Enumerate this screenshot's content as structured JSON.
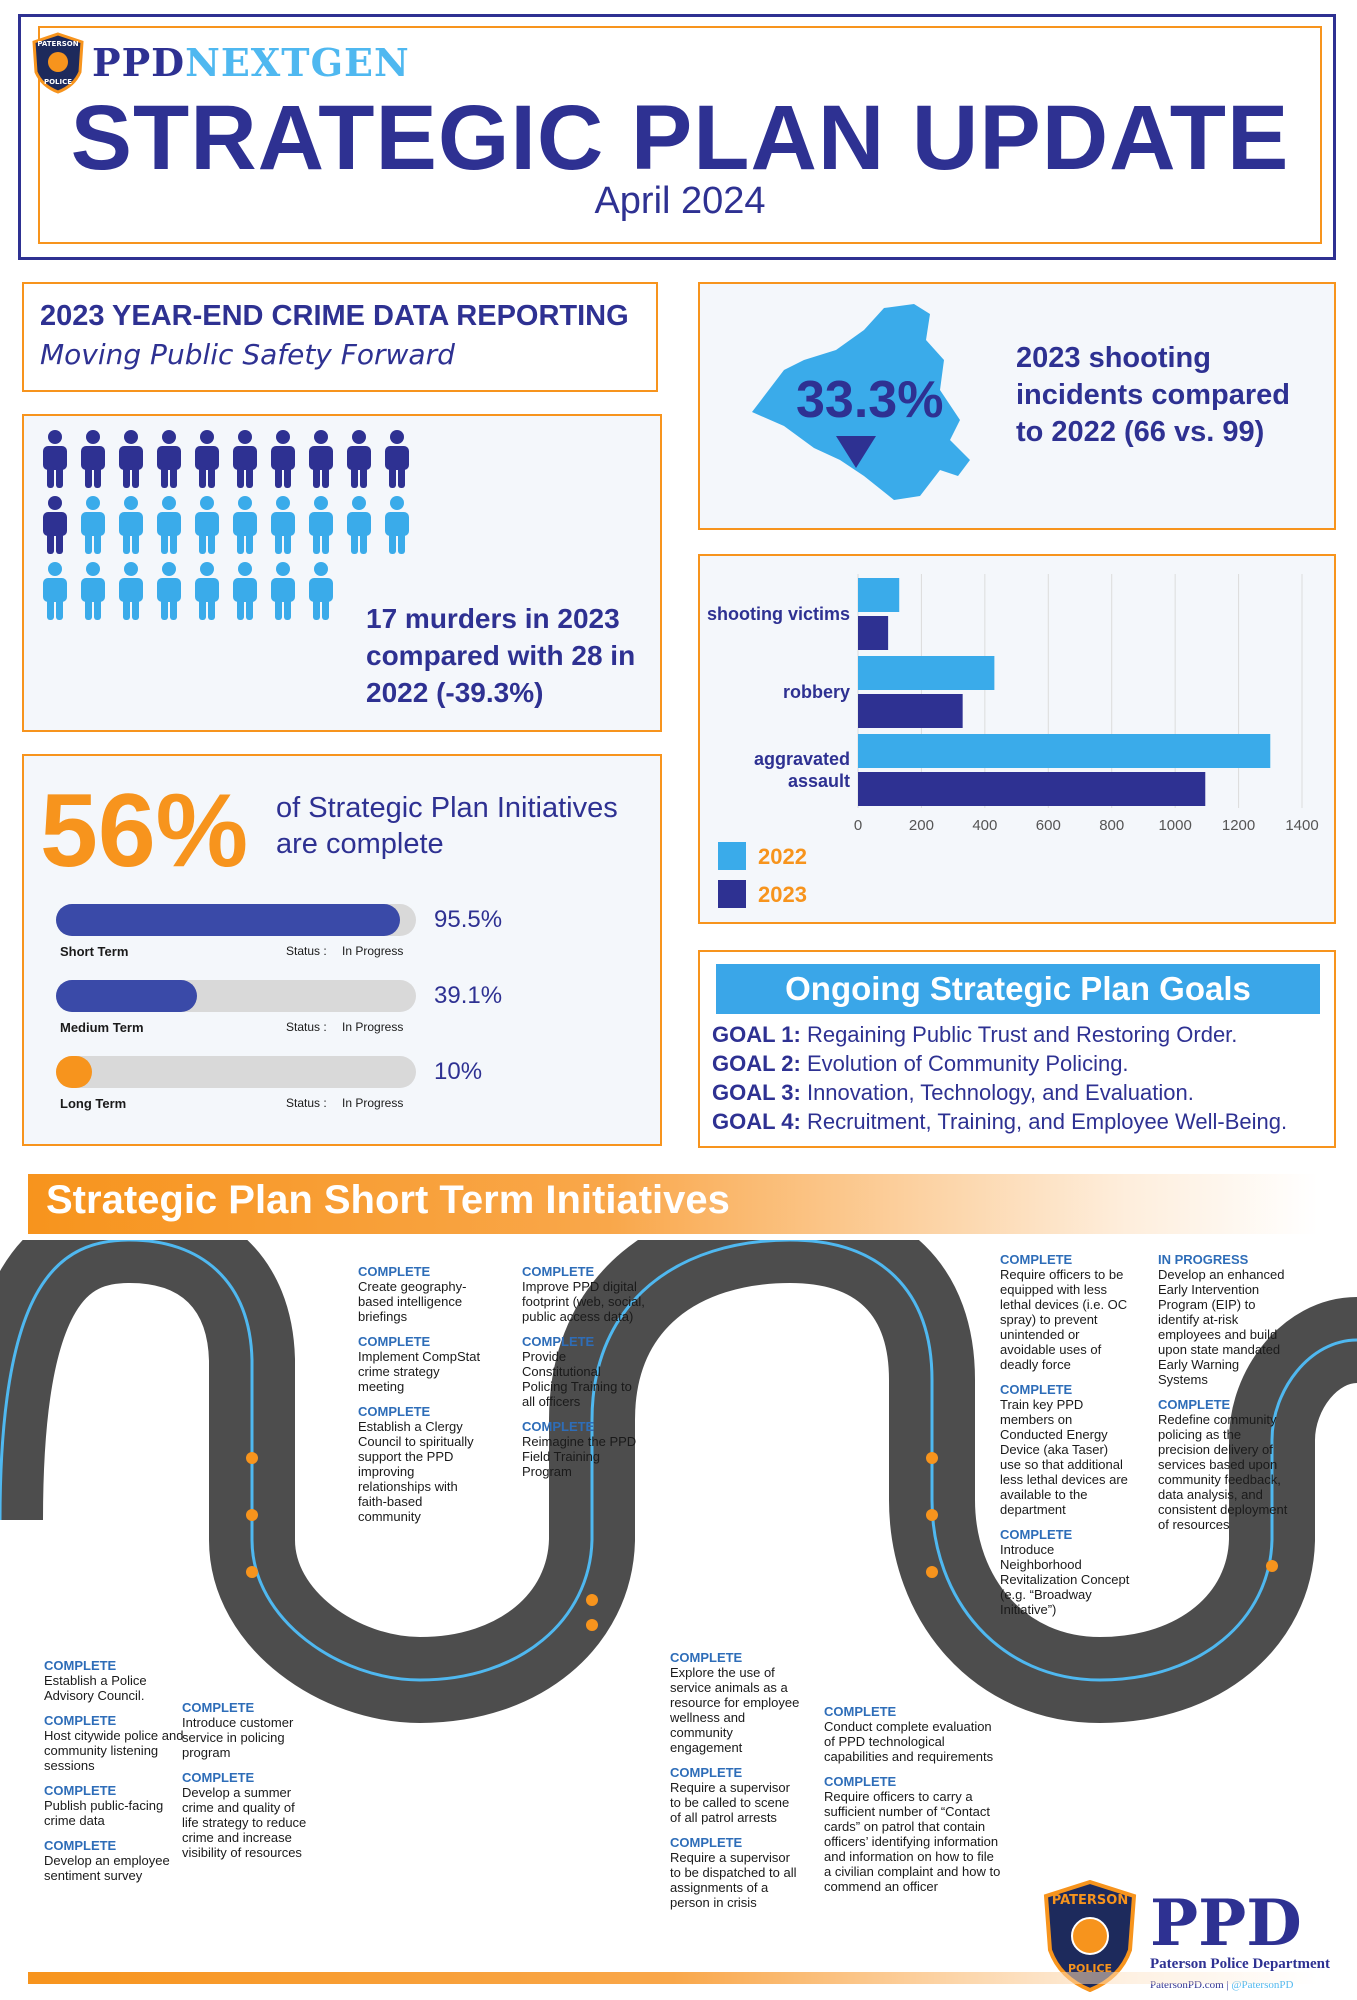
{
  "header": {
    "badge": "PATERSON N. J. POLICE",
    "brand_ppd": "PPD",
    "brand_nextgen": "NEXTGEN",
    "title": "STRATEGIC PLAN UPDATE",
    "subtitle": "April 2024"
  },
  "crime_report": {
    "title": "2023 YEAR-END CRIME DATA REPORTING",
    "subtitle": "Moving Public Safety Forward"
  },
  "murders": {
    "icon_total": 28,
    "icon_current": 17,
    "colors": {
      "previous": "#2e3192",
      "current": "#3aabea"
    },
    "text": "17 murders in 2023 compared with 28 in 2022 (-39.3%)"
  },
  "shootings": {
    "percent": "33.3%",
    "text": "2023 shooting incidents compared to 2022 (66 vs. 99)"
  },
  "initiatives": {
    "percent": "56%",
    "label": "of Strategic Plan Initiatives are complete",
    "bars": [
      {
        "name": "Short Term",
        "percent_label": "95.5%",
        "fraction": 0.955,
        "status_label": "Status :",
        "status": "In Progress",
        "color": "#3a4aa8"
      },
      {
        "name": "Medium Term",
        "percent_label": "39.1%",
        "fraction": 0.391,
        "status_label": "Status :",
        "status": "In Progress",
        "color": "#3a4aa8"
      },
      {
        "name": "Long Term",
        "percent_label": "10%",
        "fraction": 0.1,
        "status_label": "Status :",
        "status": "In Progress",
        "color": "#f7941d"
      }
    ]
  },
  "chart_data": {
    "type": "bar",
    "orientation": "horizontal",
    "categories": [
      "shooting victims",
      "robbery",
      "aggravated assault"
    ],
    "series": [
      {
        "name": "2022",
        "values": [
          130,
          430,
          1300
        ],
        "color": "#3aabea"
      },
      {
        "name": "2023",
        "values": [
          95,
          330,
          1095
        ],
        "color": "#2e3192"
      }
    ],
    "xlim": [
      0,
      1400
    ],
    "xticks": [
      "0",
      "200",
      "400",
      "600",
      "800",
      "1000",
      "1200",
      "1400"
    ],
    "grid": true,
    "legend": "bottom-left"
  },
  "goals": {
    "title": "Ongoing Strategic Plan Goals",
    "items": [
      {
        "label": "GOAL 1:",
        "text": "Regaining Public Trust and Restoring Order."
      },
      {
        "label": "GOAL 2:",
        "text": "Evolution of Community Policing."
      },
      {
        "label": "GOAL 3:",
        "text": "Innovation, Technology, and Evaluation."
      },
      {
        "label": "GOAL 4:",
        "text": "Recruitment, Training, and Employee Well-Being."
      }
    ]
  },
  "short_term": {
    "title": "Strategic Plan Short Term Initiatives",
    "col1": [
      {
        "status": "COMPLETE",
        "text": "Establish a Police Advisory Council."
      },
      {
        "status": "COMPLETE",
        "text": "Host citywide police and community listening sessions"
      },
      {
        "status": "COMPLETE",
        "text": "Publish public-facing crime data"
      },
      {
        "status": "COMPLETE",
        "text": "Develop an employee sentiment survey"
      }
    ],
    "col2": [
      {
        "status": "COMPLETE",
        "text": "Introduce customer service in policing program"
      },
      {
        "status": "COMPLETE",
        "text": "Develop a summer crime and quality of life strategy to reduce crime and increase visibility of resources"
      }
    ],
    "col3": [
      {
        "status": "COMPLETE",
        "text": "Create geography-based intelligence briefings"
      },
      {
        "status": "COMPLETE",
        "text": "Implement CompStat crime strategy meeting"
      },
      {
        "status": "COMPLETE",
        "text": "Establish a Clergy Council to spiritually support the PPD improving relationships with faith-based community"
      }
    ],
    "col4": [
      {
        "status": "COMPLETE",
        "text": "Improve PPD digital footprint (web, social, public access data)"
      },
      {
        "status": "COMPLETE",
        "text": "Provide Constitutional Policing Training to all officers"
      },
      {
        "status": "COMPLETE",
        "text": "Reimagine the PPD Field Training Program"
      }
    ],
    "col5": [
      {
        "status": "COMPLETE",
        "text": "Explore the use of service animals as a resource for employee wellness and community engagement"
      },
      {
        "status": "COMPLETE",
        "text": "Require a supervisor to be called to scene of all patrol arrests"
      },
      {
        "status": "COMPLETE",
        "text": "Require a supervisor to be dispatched to all assignments of a person in crisis"
      }
    ],
    "col6": [
      {
        "status": "COMPLETE",
        "text": "Conduct complete evaluation of PPD technological capabilities and requirements"
      },
      {
        "status": "COMPLETE",
        "text": "Require officers to carry a sufficient number of “Contact cards” on patrol that contain officers’ identifying information and information on how to file a civilian complaint and how to commend an officer"
      }
    ],
    "col7": [
      {
        "status": "COMPLETE",
        "text": "Require officers to be equipped with less lethal devices (i.e. OC spray) to prevent unintended or avoidable uses of deadly force"
      },
      {
        "status": "COMPLETE",
        "text": "Train key PPD members on Conducted Energy Device (aka Taser) use so that additional less lethal devices are available to the department"
      },
      {
        "status": "COMPLETE",
        "text": "Introduce Neighborhood Revitalization Concept (e.g. “Broadway Initiative”)"
      }
    ],
    "col8": [
      {
        "status": "IN PROGRESS",
        "text": "Develop an enhanced Early Intervention Program (EIP) to identify at-risk employees and build upon state mandated Early Warning Systems"
      },
      {
        "status": "COMPLETE",
        "text": "Redefine community policing as the precision delivery of services based upon community feedback, data analysis, and consistent deployment of resources"
      }
    ]
  },
  "footer": {
    "badge": "PATERSON N. J. POLICE 1792",
    "ppd": "PPD",
    "dept": "Paterson Police Department",
    "website": "PatersonPD.com",
    "separator": "|",
    "handle": "@PatersonPD"
  }
}
